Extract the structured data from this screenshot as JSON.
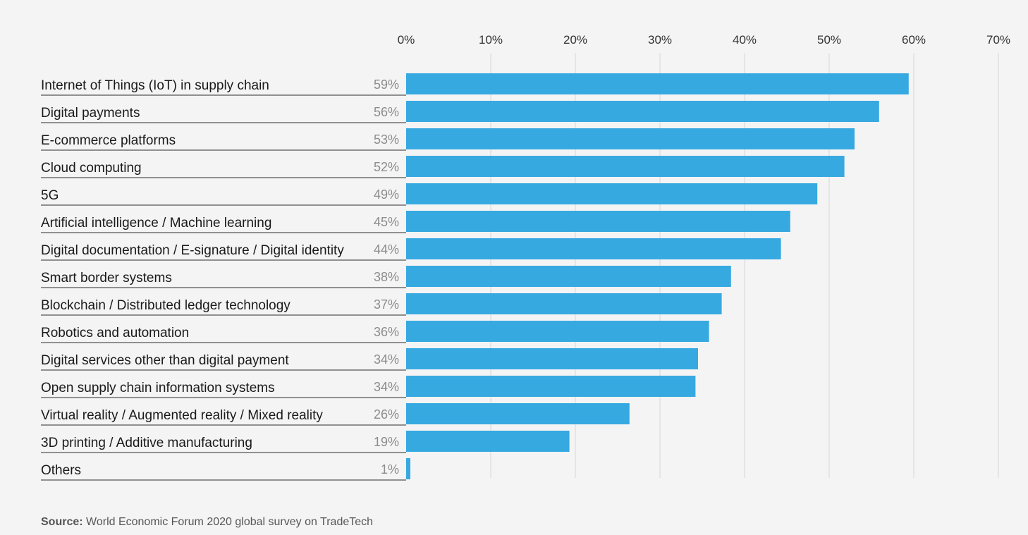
{
  "chart_data": {
    "type": "bar",
    "orientation": "horizontal",
    "categories": [
      "Internet of Things (IoT) in supply chain",
      "Digital payments",
      "E-commerce platforms",
      "Cloud computing",
      "5G",
      "Artificial intelligence / Machine learning",
      "Digital documentation / E-signature / Digital identity",
      "Smart border systems",
      "Blockchain / Distributed ledger technology",
      "Robotics and automation",
      "Digital services other than digital payment",
      "Open supply chain information systems",
      "Virtual reality / Augmented reality / Mixed reality",
      "3D printing / Additive manufacturing",
      "Others"
    ],
    "values": [
      59,
      56,
      53,
      52,
      49,
      45,
      44,
      38,
      37,
      36,
      34,
      34,
      26,
      19,
      1
    ],
    "value_labels": [
      "59%",
      "56%",
      "53%",
      "52%",
      "49%",
      "45%",
      "44%",
      "38%",
      "37%",
      "36%",
      "34%",
      "34%",
      "26%",
      "19%",
      "1%"
    ],
    "bar_values": [
      59.4,
      55.9,
      53.0,
      51.8,
      48.6,
      45.4,
      44.3,
      38.4,
      37.3,
      35.8,
      34.5,
      34.2,
      26.4,
      19.3,
      0.5
    ],
    "xticks": [
      0,
      10,
      20,
      30,
      40,
      50,
      60,
      70
    ],
    "xtick_labels": [
      "0%",
      "10%",
      "20%",
      "30%",
      "40%",
      "50%",
      "60%",
      "70%"
    ],
    "xlim": [
      0,
      70
    ],
    "grid": true,
    "axis_position": "top",
    "title": "",
    "xlabel": "",
    "ylabel": "",
    "bar_color": "#37a9e1"
  },
  "source": {
    "label": "Source:",
    "text": " World Economic Forum 2020 global survey on TradeTech"
  }
}
